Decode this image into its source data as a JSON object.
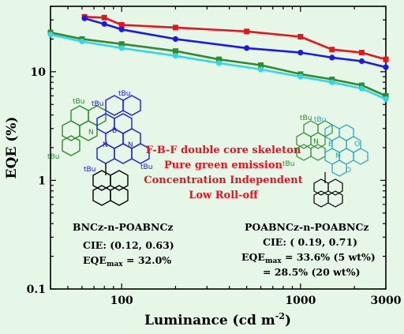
{
  "chart_data": {
    "type": "line",
    "xlabel": "Luminance (cd m",
    "xlabel_sup": "-2",
    "xlabel_close": ")",
    "ylabel": "EQE (%)",
    "xscale": "log",
    "yscale": "log",
    "xlim": [
      40,
      3000
    ],
    "ylim": [
      0.1,
      40
    ],
    "xticks": [
      100,
      1000,
      3000
    ],
    "yticks": [
      0.1,
      1,
      10
    ],
    "grid": false,
    "series": [
      {
        "color": "#e8141c",
        "marker": "square",
        "x": [
          62,
          80,
          100,
          200,
          500,
          1000,
          1500,
          2200,
          3000
        ],
        "y": [
          32.0,
          31.5,
          27.0,
          25.5,
          23.5,
          21.0,
          16.0,
          15.0,
          13.0
        ]
      },
      {
        "color": "#1a1ae6",
        "marker": "circle",
        "x": [
          62,
          80,
          100,
          200,
          500,
          1000,
          1500,
          2200,
          3000
        ],
        "y": [
          31.0,
          27.5,
          24.5,
          20.0,
          16.5,
          15.0,
          13.5,
          12.5,
          11.0
        ]
      },
      {
        "color": "#2e8b2e",
        "marker": "square",
        "x": [
          40,
          60,
          100,
          200,
          350,
          600,
          1000,
          1500,
          2200,
          3000
        ],
        "y": [
          23.0,
          20.0,
          18.0,
          15.5,
          13.0,
          11.5,
          9.5,
          8.5,
          7.5,
          6.0
        ]
      },
      {
        "color": "#33d6e6",
        "marker": "circle",
        "x": [
          40,
          60,
          100,
          200,
          350,
          600,
          1000,
          1500,
          2200,
          3000
        ],
        "y": [
          22.0,
          19.0,
          16.5,
          14.0,
          12.0,
          10.5,
          9.0,
          8.0,
          7.0,
          5.6
        ]
      }
    ]
  },
  "annotations": {
    "notes": [
      "F-B-F double core skeleton",
      "Pure green emission",
      "Concentration Independent",
      "Low Roll-off"
    ],
    "left_caption": {
      "name": "BNCz-n-POABNCz",
      "cie": "CIE: (0.12, 0.63)",
      "eqe_prefix": "EQE",
      "eqe_sub": "max",
      "eqe_value": " = 32.0%"
    },
    "right_caption": {
      "name": "POABNCz-n-POABNCz",
      "cie": "CIE: ( 0.19, 0.71)",
      "eqe_prefix": "EQE",
      "eqe_sub": "max",
      "eqe_value1": " = 33.6% (5 wt%)",
      "eqe_value2": "= 28.5% (20 wt%)"
    },
    "left_molecule_labels": [
      "tBu",
      "tBu",
      "tBu",
      "tBu",
      "tBu",
      "tBu",
      "B",
      "N",
      "N",
      "N"
    ],
    "right_molecule_labels": [
      "tBu",
      "tBu",
      "tBu",
      "B",
      "O",
      "O",
      "N",
      "N"
    ]
  }
}
